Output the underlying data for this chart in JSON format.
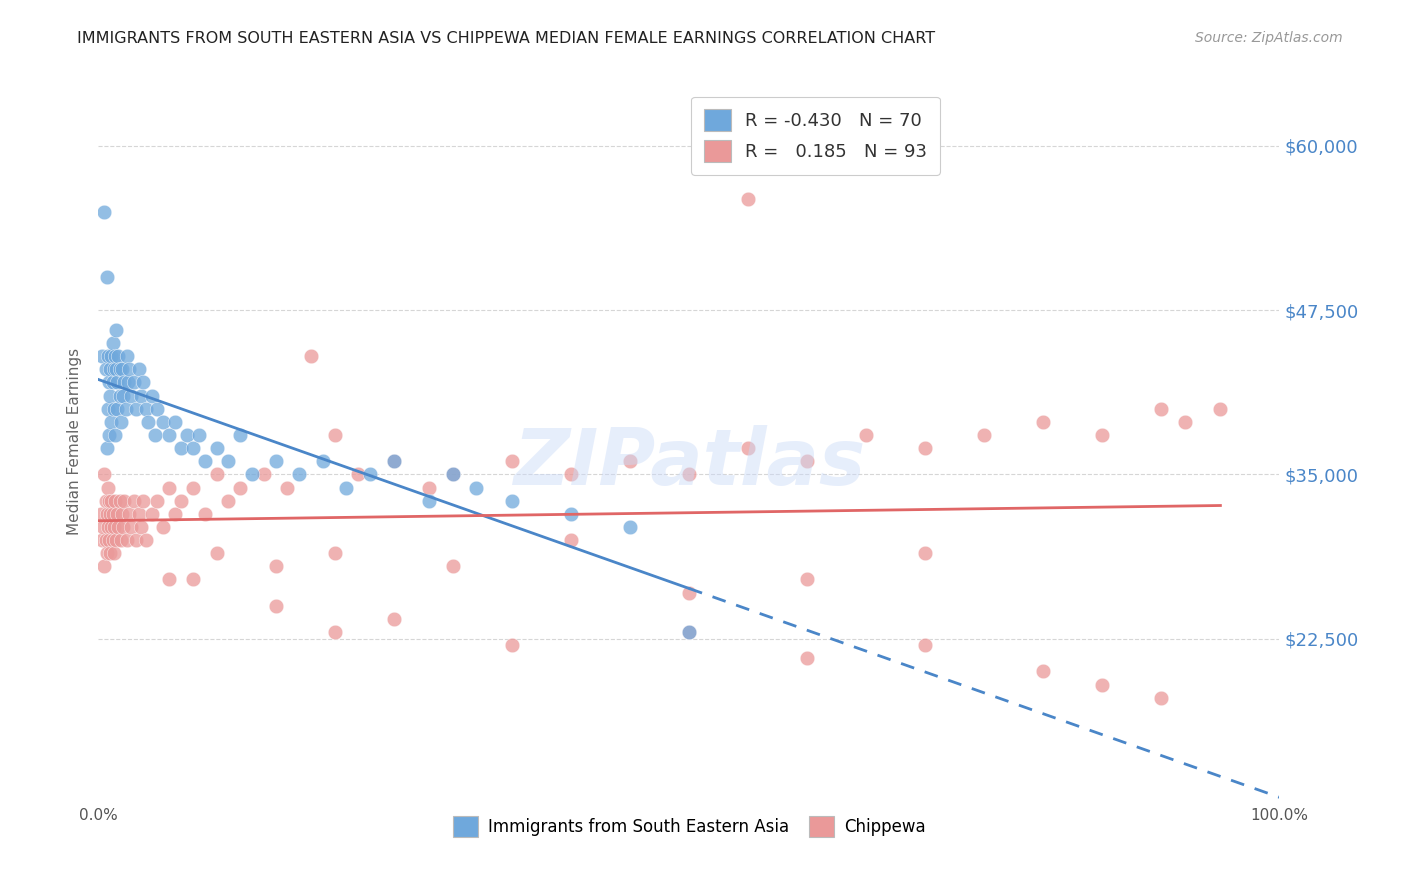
{
  "title": "IMMIGRANTS FROM SOUTH EASTERN ASIA VS CHIPPEWA MEDIAN FEMALE EARNINGS CORRELATION CHART",
  "source": "Source: ZipAtlas.com",
  "ylabel": "Median Female Earnings",
  "x_min": 0.0,
  "x_max": 1.0,
  "y_min": 10000,
  "y_max": 65000,
  "yticks": [
    22500,
    35000,
    47500,
    60000
  ],
  "ytick_labels": [
    "$22,500",
    "$35,000",
    "$47,500",
    "$60,000"
  ],
  "xtick_labels": [
    "0.0%",
    "100.0%"
  ],
  "watermark": "ZIPatlas",
  "blue_label": "Immigrants from South Eastern Asia",
  "pink_label": "Chippewa",
  "blue_r": "-0.430",
  "blue_n": "70",
  "pink_r": "0.185",
  "pink_n": "93",
  "blue_color": "#6fa8dc",
  "pink_color": "#ea9999",
  "blue_line_color": "#4a86c8",
  "pink_line_color": "#e06666",
  "background_color": "#ffffff",
  "grid_color": "#cccccc",
  "title_color": "#222222",
  "axis_label_color": "#666666",
  "ytick_color": "#4a86c8",
  "blue_scatter_x": [
    0.003,
    0.005,
    0.006,
    0.007,
    0.007,
    0.008,
    0.008,
    0.009,
    0.009,
    0.01,
    0.01,
    0.011,
    0.011,
    0.012,
    0.012,
    0.013,
    0.013,
    0.014,
    0.014,
    0.015,
    0.015,
    0.016,
    0.016,
    0.017,
    0.018,
    0.018,
    0.019,
    0.02,
    0.021,
    0.022,
    0.023,
    0.024,
    0.025,
    0.026,
    0.028,
    0.03,
    0.032,
    0.034,
    0.036,
    0.038,
    0.04,
    0.042,
    0.045,
    0.048,
    0.05,
    0.055,
    0.06,
    0.065,
    0.07,
    0.075,
    0.08,
    0.085,
    0.09,
    0.1,
    0.11,
    0.12,
    0.13,
    0.15,
    0.17,
    0.19,
    0.21,
    0.23,
    0.25,
    0.28,
    0.3,
    0.32,
    0.35,
    0.4,
    0.45,
    0.5
  ],
  "blue_scatter_y": [
    44000,
    55000,
    43000,
    50000,
    37000,
    44000,
    40000,
    42000,
    38000,
    43000,
    41000,
    44000,
    39000,
    42000,
    45000,
    43000,
    40000,
    44000,
    38000,
    43000,
    46000,
    42000,
    40000,
    44000,
    43000,
    41000,
    39000,
    43000,
    41000,
    42000,
    40000,
    44000,
    42000,
    43000,
    41000,
    42000,
    40000,
    43000,
    41000,
    42000,
    40000,
    39000,
    41000,
    38000,
    40000,
    39000,
    38000,
    39000,
    37000,
    38000,
    37000,
    38000,
    36000,
    37000,
    36000,
    38000,
    35000,
    36000,
    35000,
    36000,
    34000,
    35000,
    36000,
    33000,
    35000,
    34000,
    33000,
    32000,
    31000,
    23000
  ],
  "pink_scatter_x": [
    0.002,
    0.003,
    0.004,
    0.005,
    0.005,
    0.006,
    0.006,
    0.007,
    0.007,
    0.008,
    0.008,
    0.009,
    0.009,
    0.01,
    0.01,
    0.011,
    0.011,
    0.012,
    0.012,
    0.013,
    0.013,
    0.014,
    0.015,
    0.016,
    0.017,
    0.018,
    0.019,
    0.02,
    0.021,
    0.022,
    0.024,
    0.026,
    0.028,
    0.03,
    0.032,
    0.034,
    0.036,
    0.038,
    0.04,
    0.045,
    0.05,
    0.055,
    0.06,
    0.065,
    0.07,
    0.08,
    0.09,
    0.1,
    0.11,
    0.12,
    0.14,
    0.16,
    0.18,
    0.2,
    0.22,
    0.25,
    0.28,
    0.3,
    0.35,
    0.4,
    0.45,
    0.5,
    0.55,
    0.6,
    0.65,
    0.7,
    0.75,
    0.8,
    0.85,
    0.9,
    0.92,
    0.95,
    0.06,
    0.08,
    0.1,
    0.15,
    0.2,
    0.3,
    0.4,
    0.5,
    0.6,
    0.7,
    0.2,
    0.35,
    0.5,
    0.6,
    0.7,
    0.8,
    0.85,
    0.9,
    0.15,
    0.25,
    0.55
  ],
  "pink_scatter_y": [
    32000,
    30000,
    31000,
    28000,
    35000,
    33000,
    30000,
    32000,
    29000,
    34000,
    31000,
    33000,
    30000,
    32000,
    29000,
    31000,
    33000,
    30000,
    32000,
    31000,
    29000,
    33000,
    30000,
    32000,
    31000,
    33000,
    30000,
    32000,
    31000,
    33000,
    30000,
    32000,
    31000,
    33000,
    30000,
    32000,
    31000,
    33000,
    30000,
    32000,
    33000,
    31000,
    34000,
    32000,
    33000,
    34000,
    32000,
    35000,
    33000,
    34000,
    35000,
    34000,
    44000,
    38000,
    35000,
    36000,
    34000,
    35000,
    36000,
    35000,
    36000,
    35000,
    37000,
    36000,
    38000,
    37000,
    38000,
    39000,
    38000,
    40000,
    39000,
    40000,
    27000,
    27000,
    29000,
    28000,
    29000,
    28000,
    30000,
    26000,
    27000,
    29000,
    23000,
    22000,
    23000,
    21000,
    22000,
    20000,
    19000,
    18000,
    25000,
    24000,
    56000
  ]
}
